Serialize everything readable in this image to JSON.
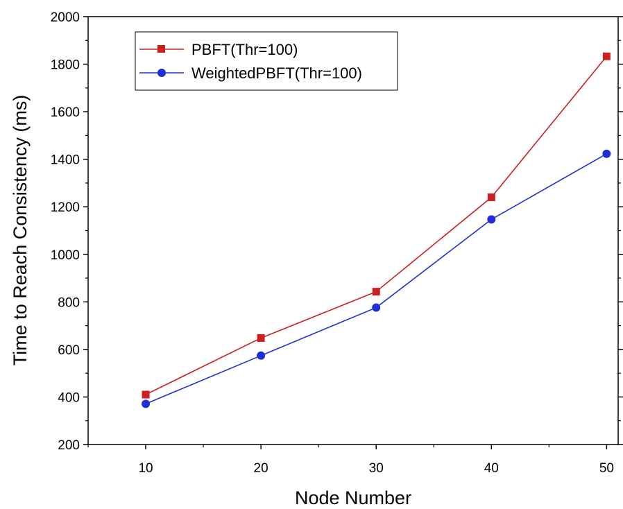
{
  "chart_data": {
    "type": "line",
    "xlabel": "Node Number",
    "ylabel": "Time to Reach Consistency (ms)",
    "x": [
      10,
      20,
      30,
      40,
      50
    ],
    "xlim": [
      5,
      51
    ],
    "ylim": [
      200,
      2000
    ],
    "xticks": [
      10,
      20,
      30,
      40,
      50
    ],
    "yticks": [
      200,
      400,
      600,
      800,
      1000,
      1200,
      1400,
      1600,
      1800,
      2000
    ],
    "grid": false,
    "legend_position": "top-left",
    "series": [
      {
        "name": "PBFT(Thr=100)",
        "values": [
          410,
          648,
          843,
          1240,
          1833
        ],
        "color": "#cc1f1f",
        "marker": "square"
      },
      {
        "name": "WeightedPBFT(Thr=100)",
        "values": [
          371,
          574,
          776,
          1147,
          1423
        ],
        "color": "#1f2fd6",
        "marker": "circle"
      }
    ]
  }
}
